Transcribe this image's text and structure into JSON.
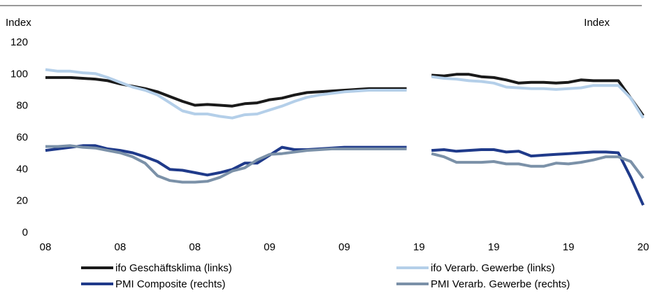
{
  "chart_data": {
    "type": "line",
    "ylabel": "Index",
    "y2label": "Index",
    "categories": [
      "08",
      null,
      null,
      null,
      null,
      null,
      "08",
      null,
      null,
      null,
      null,
      null,
      "08",
      null,
      null,
      null,
      null,
      null,
      "09",
      null,
      null,
      null,
      null,
      null,
      "09",
      null,
      null,
      null,
      null,
      null,
      "19",
      null,
      null,
      null,
      null,
      null,
      "19",
      null,
      null,
      null,
      null,
      null,
      "19",
      null,
      null,
      null,
      null,
      null,
      "20"
    ],
    "series": [
      {
        "name": "ifo Geschäftsklima (links)",
        "color": "#1a1a1a",
        "values": [
          98,
          98,
          98,
          97.5,
          97,
          96,
          94,
          92.5,
          91,
          89,
          86,
          83,
          80.5,
          81,
          80.5,
          80,
          81.5,
          82,
          84,
          85,
          87,
          88.5,
          89,
          89.5,
          90,
          90.5,
          91,
          91,
          91,
          91,
          null,
          99.5,
          99,
          100,
          100,
          98.5,
          98,
          96.5,
          94.5,
          95,
          95,
          94.5,
          95,
          96.5,
          96,
          96,
          96,
          85,
          74
        ]
      },
      {
        "name": "ifo Verarb. Gewerbe (links)",
        "color": "#b4cfe9",
        "values": [
          103,
          102,
          102,
          101,
          100.5,
          98,
          95,
          92,
          90,
          87,
          82,
          77,
          75,
          75,
          73.5,
          72.5,
          74.5,
          75,
          77.5,
          80,
          83,
          85.5,
          87,
          88,
          89,
          89.5,
          90,
          90,
          90,
          90,
          null,
          98.5,
          97.5,
          97,
          96,
          95.5,
          94.5,
          92,
          91.5,
          91,
          91,
          90.5,
          91,
          91.5,
          93,
          93,
          93,
          85,
          72.5
        ]
      },
      {
        "name": "PMI Composite (rechts)",
        "color": "#1f3a8a",
        "values": [
          52,
          53,
          54,
          55,
          55,
          53,
          52,
          50.5,
          48,
          45,
          40,
          39.5,
          38,
          36.5,
          38,
          40,
          44,
          44,
          49,
          54,
          52.5,
          52.5,
          53,
          53.5,
          54,
          54,
          54,
          54,
          54,
          54,
          null,
          52,
          52.5,
          51.5,
          52,
          52.5,
          52.5,
          51,
          51.5,
          48.5,
          49,
          49.5,
          50,
          50.5,
          51,
          51,
          50.5,
          35,
          17.5
        ]
      },
      {
        "name": "PMI Verarb. Gewerbe (rechts)",
        "color": "#7b91a8",
        "values": [
          54.5,
          54.5,
          55,
          54,
          53.5,
          52,
          50.5,
          48,
          44,
          36,
          33,
          32,
          32,
          32.5,
          35,
          39,
          41,
          46,
          49.5,
          50,
          51,
          52,
          52.5,
          53,
          53,
          53,
          53,
          53,
          53,
          53,
          null,
          50,
          48,
          44.5,
          44.5,
          44.5,
          45,
          43.5,
          43.5,
          42,
          42,
          44,
          43.5,
          44.5,
          46,
          48,
          48,
          45,
          34.5
        ]
      }
    ],
    "ylim": [
      0,
      120
    ],
    "yticks": [
      0,
      20,
      40,
      60,
      80,
      100,
      120
    ],
    "grid": false
  }
}
